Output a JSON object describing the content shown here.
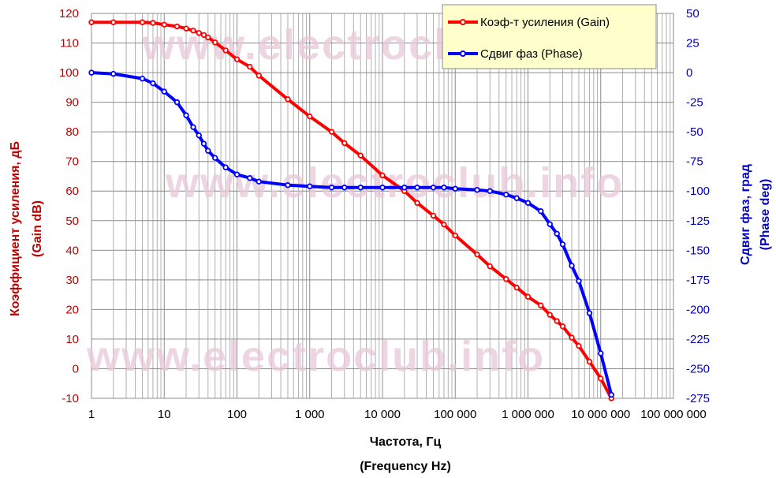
{
  "chart_data": {
    "type": "line",
    "x_scale": "log",
    "xlim": [
      1,
      100000000
    ],
    "x_ticks": [
      1,
      10,
      100,
      1000,
      10000,
      100000,
      1000000,
      10000000,
      100000000
    ],
    "x_tick_labels": [
      "1",
      "10",
      "100",
      "1 000",
      "10 000",
      "100 000",
      "1 000 000",
      "10 000 000",
      "100 000 000"
    ],
    "xlabel_line1": "Частота, Гц",
    "xlabel_line2": "(Frequency Hz)",
    "ylabel_left_line1": "Коэффициент усиления, дБ",
    "ylabel_left_line2": "(Gain dB)",
    "ylabel_right_line1": "Сдвиг фаз, град",
    "ylabel_right_line2": "(Phase deg)",
    "ylim_left": [
      -10,
      120
    ],
    "y_left_ticks": [
      -10,
      0,
      10,
      20,
      30,
      40,
      50,
      60,
      70,
      80,
      90,
      100,
      110,
      120
    ],
    "ylim_right": [
      -275,
      50
    ],
    "y_right_ticks": [
      -275,
      -250,
      -225,
      -200,
      -175,
      -150,
      -125,
      -100,
      -75,
      -50,
      -25,
      0,
      25,
      50
    ],
    "grid": true,
    "legend_position": "top-right",
    "watermark": "www.electroclub.info",
    "x": [
      1,
      2,
      5,
      7,
      10,
      15,
      20,
      25,
      30,
      35,
      40,
      50,
      70,
      100,
      150,
      200,
      500,
      1000,
      2000,
      3000,
      5000,
      10000,
      20000,
      30000,
      50000,
      70000,
      100000,
      200000,
      300000,
      500000,
      700000,
      1000000,
      1500000,
      2000000,
      2500000,
      3000000,
      4000000,
      5000000,
      7000000,
      10000000,
      14000000
    ],
    "series": [
      {
        "name": "Коэф-т усиления (Gain)",
        "axis": "left",
        "color": "#ff0000",
        "values": [
          117,
          117,
          117,
          116.8,
          116.2,
          115.6,
          114.9,
          114.2,
          113.4,
          112.7,
          111.9,
          110.2,
          107.5,
          104.5,
          102,
          99,
          91,
          85.2,
          80,
          76.2,
          72,
          65.3,
          60,
          56,
          51.7,
          48.7,
          45,
          38.6,
          34.6,
          30.3,
          27.4,
          24.3,
          21.4,
          18.2,
          16.1,
          14.3,
          10.5,
          7.7,
          2.4,
          -3.3,
          -10
        ]
      },
      {
        "name": "Сдвиг фаз (Phase)",
        "axis": "right",
        "color": "#0000ff",
        "values": [
          0,
          -1,
          -5,
          -9,
          -16,
          -25,
          -36,
          -46,
          -53,
          -60,
          -66,
          -72,
          -80,
          -86,
          -89,
          -92,
          -95,
          -96,
          -97,
          -97,
          -97,
          -97,
          -97,
          -97,
          -97,
          -97,
          -98,
          -99,
          -100,
          -103,
          -106,
          -110,
          -117,
          -128,
          -136,
          -145,
          -163,
          -176,
          -203,
          -237,
          -272
        ]
      }
    ]
  }
}
